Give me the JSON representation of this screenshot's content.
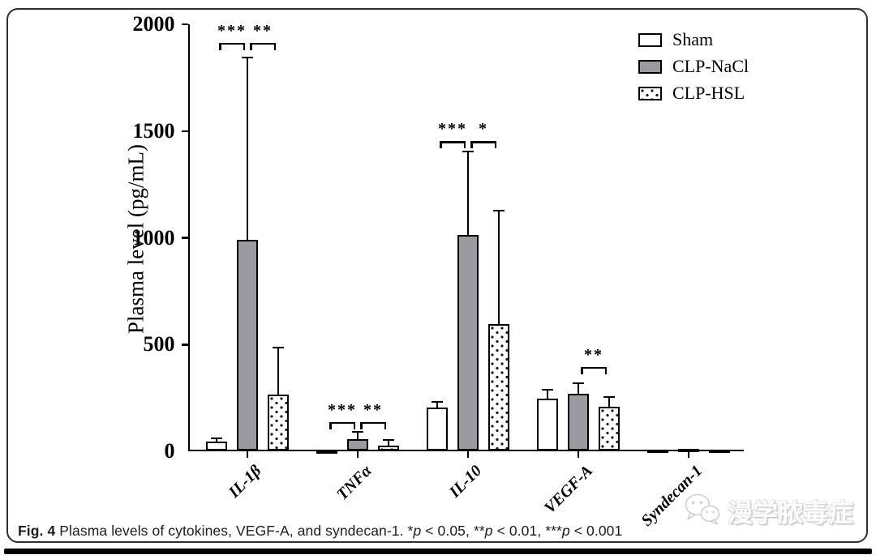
{
  "figure": {
    "caption_segments": [
      {
        "text": "Fig. 4",
        "bold": true
      },
      {
        "text": " Plasma levels of cytokines, VEGF-A, and syndecan-1. *"
      },
      {
        "text": "p",
        "italic": true
      },
      {
        "text": " < 0.05, **"
      },
      {
        "text": "p",
        "italic": true
      },
      {
        "text": " < 0.01, ***"
      },
      {
        "text": "p",
        "italic": true
      },
      {
        "text": " < 0.001"
      }
    ],
    "watermark": {
      "icon": "wechat-icon",
      "text": "漫学脓毒症"
    }
  },
  "chart_data": {
    "type": "bar",
    "title": "",
    "xlabel": "",
    "ylabel": "Plasma level (pg/mL)",
    "ylim": [
      0,
      2000
    ],
    "yticks": [
      0,
      500,
      1000,
      1500,
      2000
    ],
    "grid": false,
    "legend_position": "top-right",
    "categories": [
      "IL-1β",
      "TNFα",
      "IL-10",
      "VEGF-A",
      "Syndecan-1"
    ],
    "series": [
      {
        "name": "Sham",
        "fill": "white",
        "values": [
          45,
          5,
          205,
          247,
          8
        ],
        "error_top": [
          60,
          null,
          232,
          288,
          null
        ]
      },
      {
        "name": "CLP-NaCl",
        "fill": "gray",
        "values": [
          990,
          57,
          1013,
          269,
          12
        ],
        "error_top": [
          1845,
          91,
          1404,
          319,
          null
        ]
      },
      {
        "name": "CLP-HSL",
        "fill": "dotted",
        "values": [
          266,
          25,
          596,
          209,
          8
        ],
        "error_top": [
          486,
          52,
          1127,
          254,
          null
        ]
      }
    ],
    "significance": [
      {
        "category": 0,
        "between": [
          0,
          1
        ],
        "label": "***",
        "y": 1913
      },
      {
        "category": 0,
        "between": [
          1,
          2
        ],
        "label": "**",
        "y": 1913
      },
      {
        "category": 1,
        "between": [
          0,
          1
        ],
        "label": "***",
        "y": 137
      },
      {
        "category": 1,
        "between": [
          1,
          2
        ],
        "label": "**",
        "y": 137
      },
      {
        "category": 2,
        "between": [
          0,
          1
        ],
        "label": "***",
        "y": 1453
      },
      {
        "category": 2,
        "between": [
          1,
          2
        ],
        "label": "*",
        "y": 1453
      },
      {
        "category": 3,
        "between": [
          1,
          2
        ],
        "label": "**",
        "y": 395
      }
    ],
    "colors": {
      "bar_white": "#ffffff",
      "bar_gray": "#9a9aa0",
      "axis": "#000000"
    }
  }
}
